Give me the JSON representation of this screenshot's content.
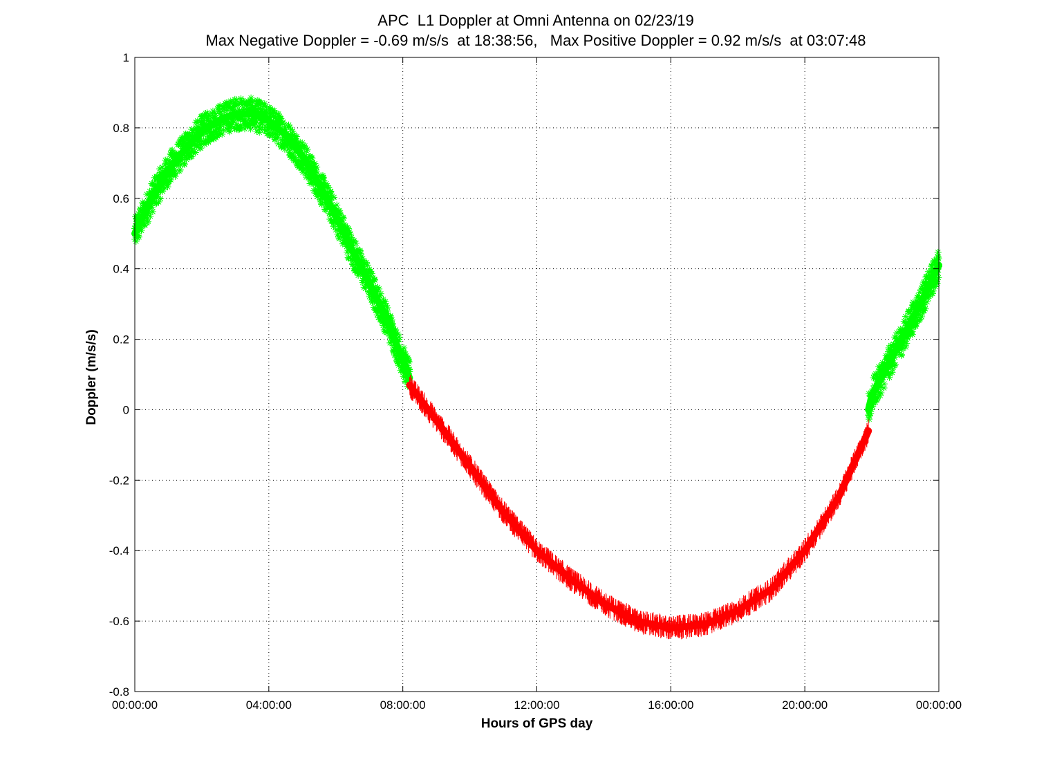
{
  "chart_data": {
    "type": "scatter",
    "title": "APC  L1 Doppler at Omni Antenna on 02/23/19",
    "subtitle": "Max Negative Doppler = -0.69 m/s/s  at 18:38:56,   Max Positive Doppler = 0.92 m/s/s  at 03:07:48",
    "xlabel": "Hours of GPS day",
    "ylabel": "Doppler (m/s/s)",
    "xlim": [
      0,
      24
    ],
    "ylim": [
      -0.8,
      1.0
    ],
    "x_ticks": [
      0,
      4,
      8,
      12,
      16,
      20,
      24
    ],
    "x_tick_labels": [
      "00:00:00",
      "04:00:00",
      "08:00:00",
      "12:00:00",
      "16:00:00",
      "20:00:00",
      "00:00:00"
    ],
    "y_ticks": [
      -0.8,
      -0.6,
      -0.4,
      -0.2,
      0,
      0.2,
      0.4,
      0.6,
      0.8,
      1
    ],
    "y_tick_labels": [
      "-0.8",
      "-0.6",
      "-0.4",
      "-0.2",
      "0",
      "0.2",
      "0.4",
      "0.6",
      "0.8",
      "1"
    ],
    "grid": true,
    "series": [
      {
        "color": "#00ff00",
        "marker": "asterisk",
        "segments": [
          {
            "x": [
              0.0,
              0.5,
              1.0,
              1.5,
              2.0,
              2.5,
              3.0,
              3.5,
              4.0,
              4.5,
              5.0,
              5.5,
              6.0,
              6.5,
              7.0,
              7.5,
              8.0,
              8.2
            ],
            "y": [
              0.5,
              0.6,
              0.68,
              0.74,
              0.79,
              0.82,
              0.84,
              0.84,
              0.82,
              0.78,
              0.72,
              0.64,
              0.55,
              0.45,
              0.36,
              0.26,
              0.14,
              0.09
            ]
          },
          {
            "x": [
              21.9,
              22.0,
              22.5,
              23.0,
              23.5,
              24.0
            ],
            "y": [
              0.0,
              0.04,
              0.13,
              0.22,
              0.31,
              0.41
            ]
          }
        ]
      },
      {
        "color": "#ff0000",
        "marker": "line",
        "segments": [
          {
            "x": [
              8.2,
              9.0,
              10.0,
              11.0,
              12.0,
              13.0,
              14.0,
              15.0,
              16.0,
              17.0,
              18.0,
              18.65,
              19.0,
              20.0,
              21.0,
              21.9
            ],
            "y": [
              0.07,
              -0.03,
              -0.16,
              -0.29,
              -0.4,
              -0.48,
              -0.55,
              -0.6,
              -0.62,
              -0.61,
              -0.57,
              -0.53,
              -0.51,
              -0.4,
              -0.25,
              -0.06
            ]
          }
        ]
      }
    ]
  }
}
